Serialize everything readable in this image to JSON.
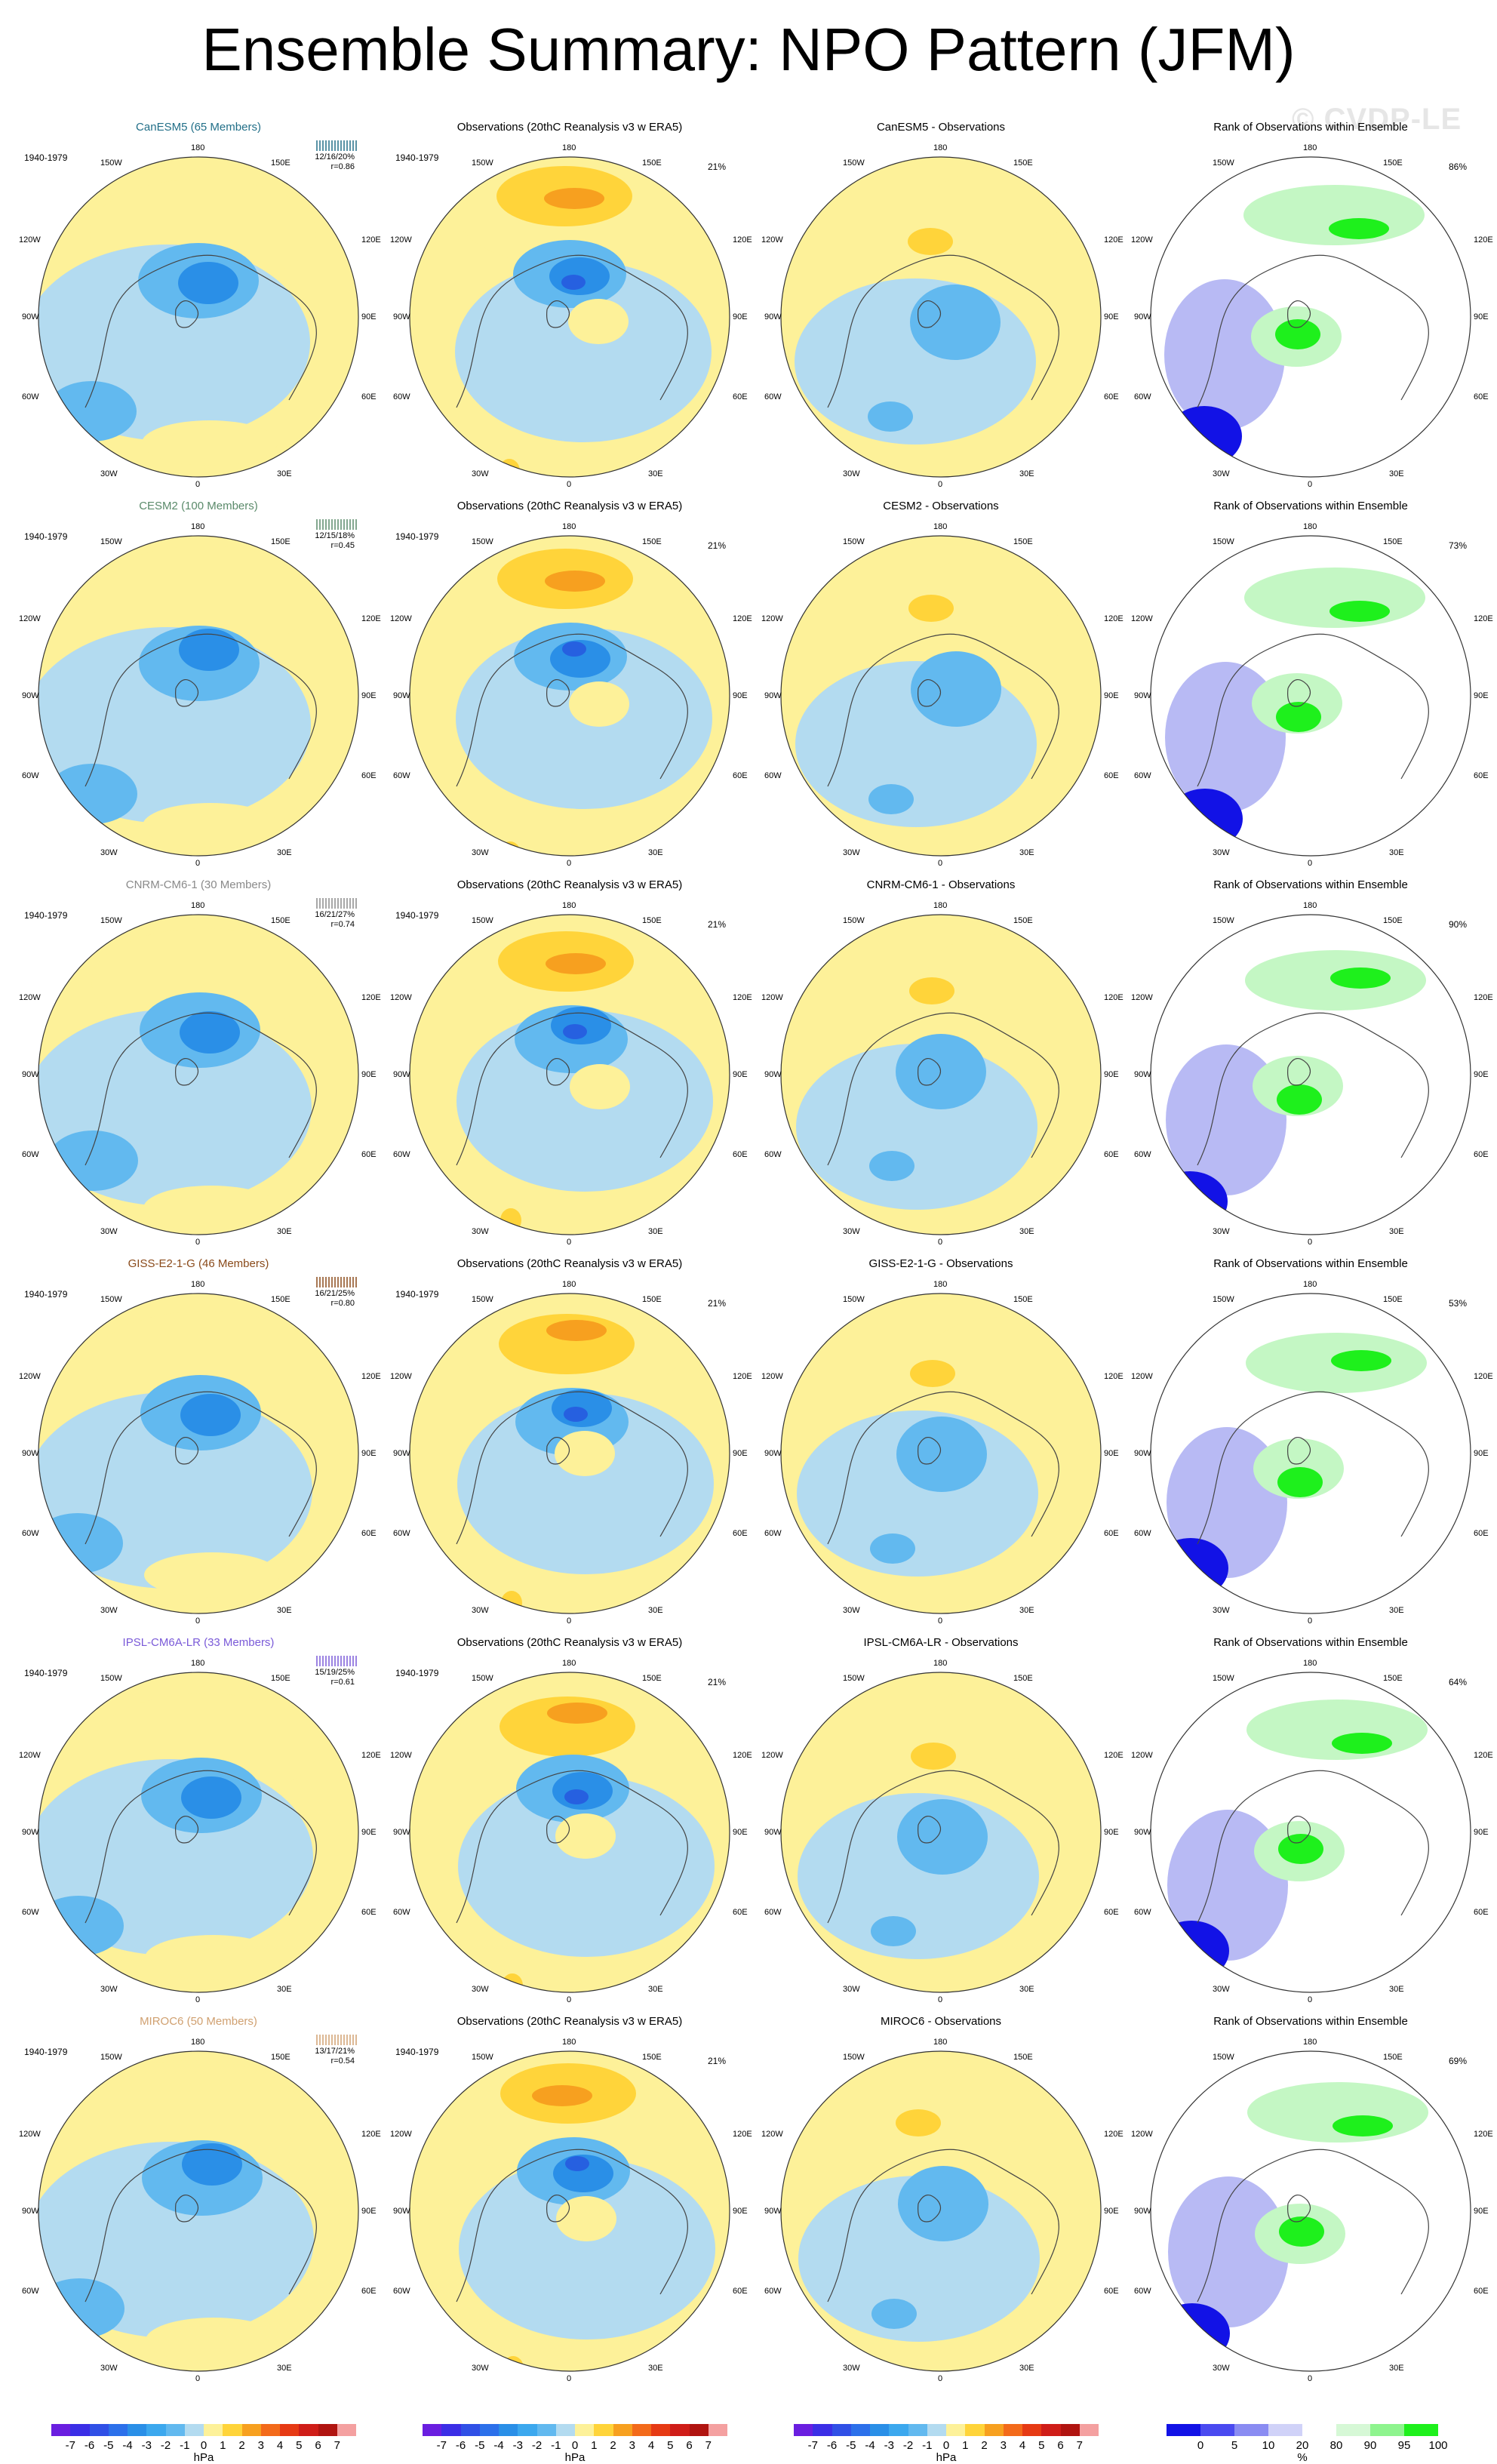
{
  "title": "Ensemble Summary: NPO Pattern (JFM)",
  "watermark": "© CVDP-LE",
  "colors": {
    "pos1": "#fdf199",
    "pos2": "#ffd43a",
    "pos3": "#f7a01f",
    "neg1": "#b3dbf0",
    "neg2": "#62b9ef",
    "neg3": "#2a8fe7",
    "neg4": "#2660e0",
    "rank_green": "#1ef01c",
    "rank_lightgreen": "#c4f7c4",
    "rank_blue": "#1212e6",
    "rank_lightblue": "#b8baf4",
    "coast": "#444444"
  },
  "panel_text": {
    "obs_title": "Observations (20thC Reanalysis v3 w ERA5)",
    "rank_title": "Rank of Observations within Ensemble",
    "years": "1940-1979",
    "obs_pct": "21%"
  },
  "map_labels": {
    "top": "180",
    "bottom": "0",
    "upper_left": "150W",
    "upper_right": "150E",
    "mid_upper_left": "120W",
    "mid_upper_right": "120E",
    "left": "90W",
    "right": "90E",
    "mid_lower_left": "60W",
    "mid_lower_right": "60E",
    "lower_left": "30W",
    "lower_right": "30E"
  },
  "chart_data": {
    "type": "heatmap",
    "description_units": "hPa",
    "rows": [
      {
        "model": "CanESM5",
        "members": "CanESM5 (65 Members)",
        "label_color": "#226f88",
        "stats": "12/16/20%",
        "r": "r=0.86",
        "diff_title": "CanESM5 - Observations",
        "rank_pct": "86%"
      },
      {
        "model": "CESM2",
        "members": "CESM2 (100 Members)",
        "label_color": "#5a8a6a",
        "stats": "12/15/18%",
        "r": "r=0.45",
        "diff_title": "CESM2 - Observations",
        "rank_pct": "73%"
      },
      {
        "model": "CNRM-CM6-1",
        "members": "CNRM-CM6-1 (30 Members)",
        "label_color": "#8a8a8a",
        "stats": "16/21/27%",
        "r": "r=0.74",
        "diff_title": "CNRM-CM6-1 - Observations",
        "rank_pct": "90%"
      },
      {
        "model": "GISS-E2-1-G",
        "members": "GISS-E2-1-G (46 Members)",
        "label_color": "#8a4a1a",
        "stats": "16/21/25%",
        "r": "r=0.80",
        "diff_title": "GISS-E2-1-G - Observations",
        "rank_pct": "53%"
      },
      {
        "model": "IPSL-CM6A-LR",
        "members": "IPSL-CM6A-LR (33 Members)",
        "label_color": "#7a5ad8",
        "stats": "15/19/25%",
        "r": "r=0.61",
        "diff_title": "IPSL-CM6A-LR - Observations",
        "rank_pct": "64%"
      },
      {
        "model": "MIROC6",
        "members": "MIROC6 (50 Members)",
        "label_color": "#d0a070",
        "stats": "13/17/21%",
        "r": "r=0.54",
        "diff_title": "MIROC6 - Observations",
        "rank_pct": "69%"
      }
    ],
    "colorbar_hpa": {
      "labels": [
        "-7",
        "-6",
        "-5",
        "-4",
        "-3",
        "-2",
        "-1",
        "0",
        "1",
        "2",
        "3",
        "4",
        "5",
        "6",
        "7"
      ],
      "colors": [
        "#6a1ee0",
        "#3b2ee6",
        "#3050e6",
        "#2c70ea",
        "#2a8fe7",
        "#3ca8ee",
        "#62b9ef",
        "#b3dbf0",
        "#fdf199",
        "#ffd43a",
        "#f7a01f",
        "#f36a1a",
        "#e63a14",
        "#cf1d18",
        "#b01410",
        "#f4a0a0"
      ],
      "unit": "hPa"
    },
    "colorbar_rank": {
      "labels": [
        "0",
        "5",
        "10",
        "20",
        "80",
        "90",
        "95",
        "100"
      ],
      "colors": [
        "#1212e6",
        "#4a4af0",
        "#8a8cf2",
        "#d0d2f8",
        "#ffffff",
        "#d6f8d6",
        "#8ef48e",
        "#1ef01c"
      ],
      "unit": "%"
    }
  }
}
